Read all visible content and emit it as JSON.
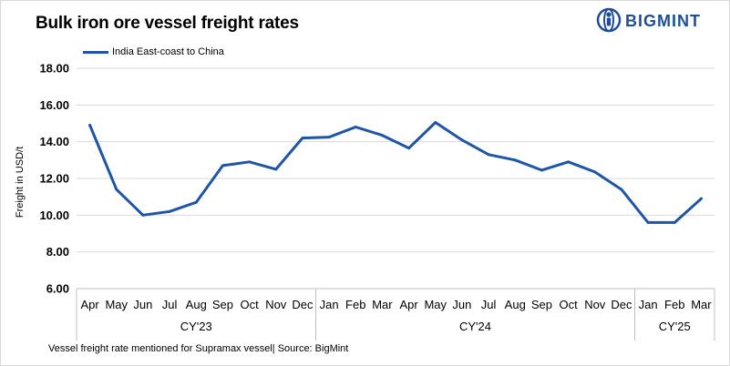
{
  "header": {
    "title": "Bulk iron ore vessel freight rates"
  },
  "brand": {
    "name": "BIGMINT",
    "color": "#1f4e98"
  },
  "footnote": "Vessel freight rate mentioned for Supramax vessel| Source: BigMint",
  "chart_data": {
    "type": "line",
    "title": "Bulk iron ore vessel freight rates",
    "ylabel": "Freight in USD/t",
    "xlabel": "",
    "ylim": [
      6,
      18
    ],
    "yticks": [
      "6.00",
      "8.00",
      "10.00",
      "12.00",
      "14.00",
      "16.00",
      "18.00"
    ],
    "ytick_values": [
      6,
      8,
      10,
      12,
      14,
      16,
      18
    ],
    "grid": true,
    "legend_position": "top-left",
    "categories": [
      "Apr",
      "May",
      "Jun",
      "Jul",
      "Aug",
      "Sep",
      "Oct",
      "Nov",
      "Dec",
      "Jan",
      "Feb",
      "Mar",
      "Apr",
      "May",
      "Jun",
      "Jul",
      "Aug",
      "Sep",
      "Oct",
      "Nov",
      "Dec",
      "Jan",
      "Feb",
      "Mar"
    ],
    "groups": [
      {
        "label": "CY'23",
        "start": 0,
        "end": 8
      },
      {
        "label": "CY'24",
        "start": 9,
        "end": 20
      },
      {
        "label": "CY'25",
        "start": 21,
        "end": 23
      }
    ],
    "series": [
      {
        "name": "India East-coast to China",
        "color": "#1f55a4",
        "values": [
          14.9,
          11.4,
          10.0,
          10.2,
          10.7,
          12.7,
          12.9,
          12.5,
          14.2,
          14.25,
          14.8,
          14.35,
          13.65,
          15.05,
          14.1,
          13.3,
          13.0,
          12.45,
          12.9,
          12.35,
          11.4,
          9.6,
          9.6,
          10.9
        ]
      }
    ]
  }
}
